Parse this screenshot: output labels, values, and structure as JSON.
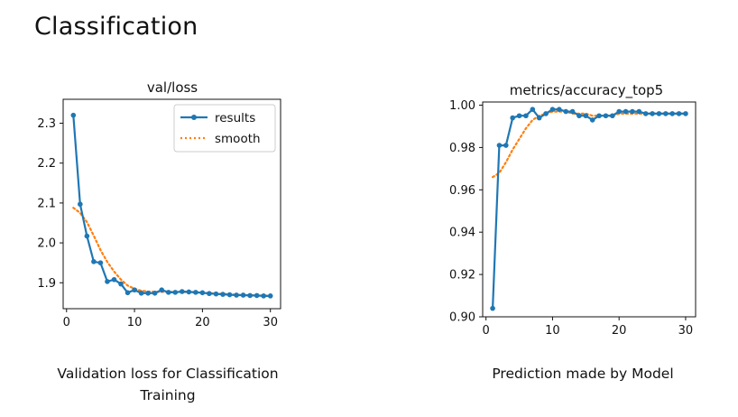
{
  "page_title": "Classification",
  "captions": {
    "left": "Validation loss for Classification Training",
    "right": "Prediction made by Model"
  },
  "colors": {
    "results": "#1f77b4",
    "smooth": "#ff7f0e"
  },
  "chart_data": [
    {
      "type": "line",
      "title": "val/loss",
      "xlabel": "",
      "ylabel": "",
      "xlim": [
        -0.5,
        31.5
      ],
      "ylim": [
        1.835,
        2.36
      ],
      "xticks": [
        0,
        10,
        20,
        30
      ],
      "yticks": [
        1.9,
        2.0,
        2.1,
        2.2,
        2.3
      ],
      "ytick_labels": [
        "1.9",
        "2.0",
        "2.1",
        "2.2",
        "2.3"
      ],
      "legend": "top-right",
      "series": [
        {
          "name": "results",
          "style": "line-marker",
          "x": [
            1,
            2,
            3,
            4,
            5,
            6,
            7,
            8,
            9,
            10,
            11,
            12,
            13,
            14,
            15,
            16,
            17,
            18,
            19,
            20,
            21,
            22,
            23,
            24,
            25,
            26,
            27,
            28,
            29,
            30
          ],
          "y": [
            2.32,
            2.097,
            2.017,
            1.953,
            1.95,
            1.903,
            1.908,
            1.897,
            1.875,
            1.882,
            1.874,
            1.874,
            1.874,
            1.882,
            1.876,
            1.876,
            1.878,
            1.877,
            1.876,
            1.875,
            1.873,
            1.872,
            1.871,
            1.87,
            1.869,
            1.869,
            1.868,
            1.868,
            1.867,
            1.867
          ]
        },
        {
          "name": "smooth",
          "style": "dotted",
          "x": [
            1,
            2,
            3,
            4,
            5,
            6,
            7,
            8,
            9,
            10,
            11,
            12,
            13,
            14,
            15,
            16,
            17,
            18,
            19,
            20,
            21,
            22,
            23,
            24,
            25,
            26,
            27,
            28,
            29,
            30
          ],
          "y": [
            2.088,
            2.075,
            2.052,
            2.018,
            1.982,
            1.952,
            1.928,
            1.908,
            1.893,
            1.885,
            1.88,
            1.878,
            1.877,
            1.877,
            1.877,
            1.877,
            1.877,
            1.876,
            1.876,
            1.875,
            1.874,
            1.873,
            1.872,
            1.871,
            1.87,
            1.869,
            1.869,
            1.868,
            1.868,
            1.867
          ]
        }
      ]
    },
    {
      "type": "line",
      "title": "metrics/accuracy_top5",
      "xlabel": "",
      "ylabel": "",
      "xlim": [
        -0.5,
        31.5
      ],
      "ylim": [
        0.9,
        1.0015
      ],
      "xticks": [
        0,
        10,
        20,
        30
      ],
      "yticks": [
        0.9,
        0.92,
        0.94,
        0.96,
        0.98,
        1.0
      ],
      "ytick_labels": [
        "0.90",
        "0.92",
        "0.94",
        "0.96",
        "0.98",
        "1.00"
      ],
      "legend": "none",
      "series": [
        {
          "name": "results",
          "style": "line-marker",
          "x": [
            1,
            2,
            3,
            4,
            5,
            6,
            7,
            8,
            9,
            10,
            11,
            12,
            13,
            14,
            15,
            16,
            17,
            18,
            19,
            20,
            21,
            22,
            23,
            24,
            25,
            26,
            27,
            28,
            29,
            30
          ],
          "y": [
            0.904,
            0.981,
            0.981,
            0.994,
            0.995,
            0.995,
            0.998,
            0.994,
            0.996,
            0.998,
            0.998,
            0.997,
            0.997,
            0.995,
            0.995,
            0.993,
            0.995,
            0.995,
            0.995,
            0.997,
            0.997,
            0.997,
            0.997,
            0.996,
            0.996,
            0.996,
            0.996,
            0.996,
            0.996,
            0.996
          ]
        },
        {
          "name": "smooth",
          "style": "dotted",
          "x": [
            1,
            2,
            3,
            4,
            5,
            6,
            7,
            8,
            9,
            10,
            11,
            12,
            13,
            14,
            15,
            16,
            17,
            18,
            19,
            20,
            21,
            22,
            23,
            24,
            25,
            26,
            27,
            28,
            29,
            30
          ],
          "y": [
            0.966,
            0.968,
            0.973,
            0.979,
            0.984,
            0.989,
            0.993,
            0.995,
            0.996,
            0.997,
            0.997,
            0.997,
            0.996,
            0.996,
            0.996,
            0.995,
            0.995,
            0.995,
            0.995,
            0.996,
            0.996,
            0.996,
            0.996,
            0.996,
            0.996,
            0.996,
            0.996,
            0.996,
            0.996,
            0.996
          ]
        }
      ]
    }
  ]
}
